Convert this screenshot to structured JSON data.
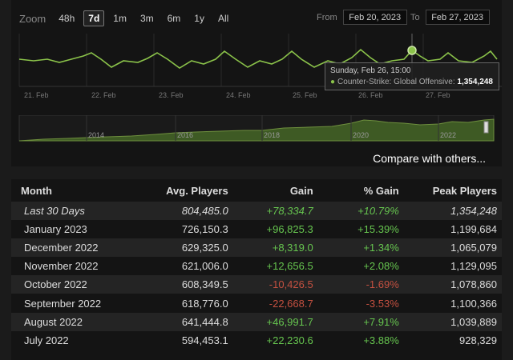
{
  "zoom": {
    "label": "Zoom",
    "options": [
      "48h",
      "7d",
      "1m",
      "3m",
      "6m",
      "1y",
      "All"
    ],
    "active": "7d"
  },
  "range": {
    "from_label": "From",
    "from_value": "Feb 20, 2023",
    "to_label": "To",
    "to_value": "Feb 27, 2023"
  },
  "main_chart": {
    "x_labels": [
      "21. Feb",
      "22. Feb",
      "23. Feb",
      "24. Feb",
      "25. Feb",
      "26. Feb",
      "27. Feb"
    ],
    "line_color": "#8bc34a"
  },
  "navigator": {
    "year_labels": [
      "2014",
      "2016",
      "2018",
      "2020",
      "2022"
    ],
    "fill_color": "#3e5a24"
  },
  "tooltip": {
    "line1": "Sunday, Feb 26, 15:00",
    "series": "Counter-Strike: Global Offensive:",
    "value": "1,354,248"
  },
  "compare_link": "Compare with others...",
  "table": {
    "headers": {
      "month": "Month",
      "avg": "Avg. Players",
      "gain": "Gain",
      "pct": "% Gain",
      "peak": "Peak Players"
    },
    "rows": [
      {
        "month": "Last 30 Days",
        "avg": "804,485.0",
        "gain": "+78,334.7",
        "pct": "+10.79%",
        "peak": "1,354,248",
        "trend": "pos",
        "italic": true
      },
      {
        "month": "January 2023",
        "avg": "726,150.3",
        "gain": "+96,825.3",
        "pct": "+15.39%",
        "peak": "1,199,684",
        "trend": "pos"
      },
      {
        "month": "December 2022",
        "avg": "629,325.0",
        "gain": "+8,319.0",
        "pct": "+1.34%",
        "peak": "1,065,079",
        "trend": "pos"
      },
      {
        "month": "November 2022",
        "avg": "621,006.0",
        "gain": "+12,656.5",
        "pct": "+2.08%",
        "peak": "1,129,095",
        "trend": "pos"
      },
      {
        "month": "October 2022",
        "avg": "608,349.5",
        "gain": "-10,426.5",
        "pct": "-1.69%",
        "peak": "1,078,860",
        "trend": "neg"
      },
      {
        "month": "September 2022",
        "avg": "618,776.0",
        "gain": "-22,668.7",
        "pct": "-3.53%",
        "peak": "1,100,366",
        "trend": "neg"
      },
      {
        "month": "August 2022",
        "avg": "641,444.8",
        "gain": "+46,991.7",
        "pct": "+7.91%",
        "peak": "1,039,889",
        "trend": "pos"
      },
      {
        "month": "July 2022",
        "avg": "594,453.1",
        "gain": "+22,230.6",
        "pct": "+3.88%",
        "peak": "928,329",
        "trend": "pos"
      }
    ]
  }
}
